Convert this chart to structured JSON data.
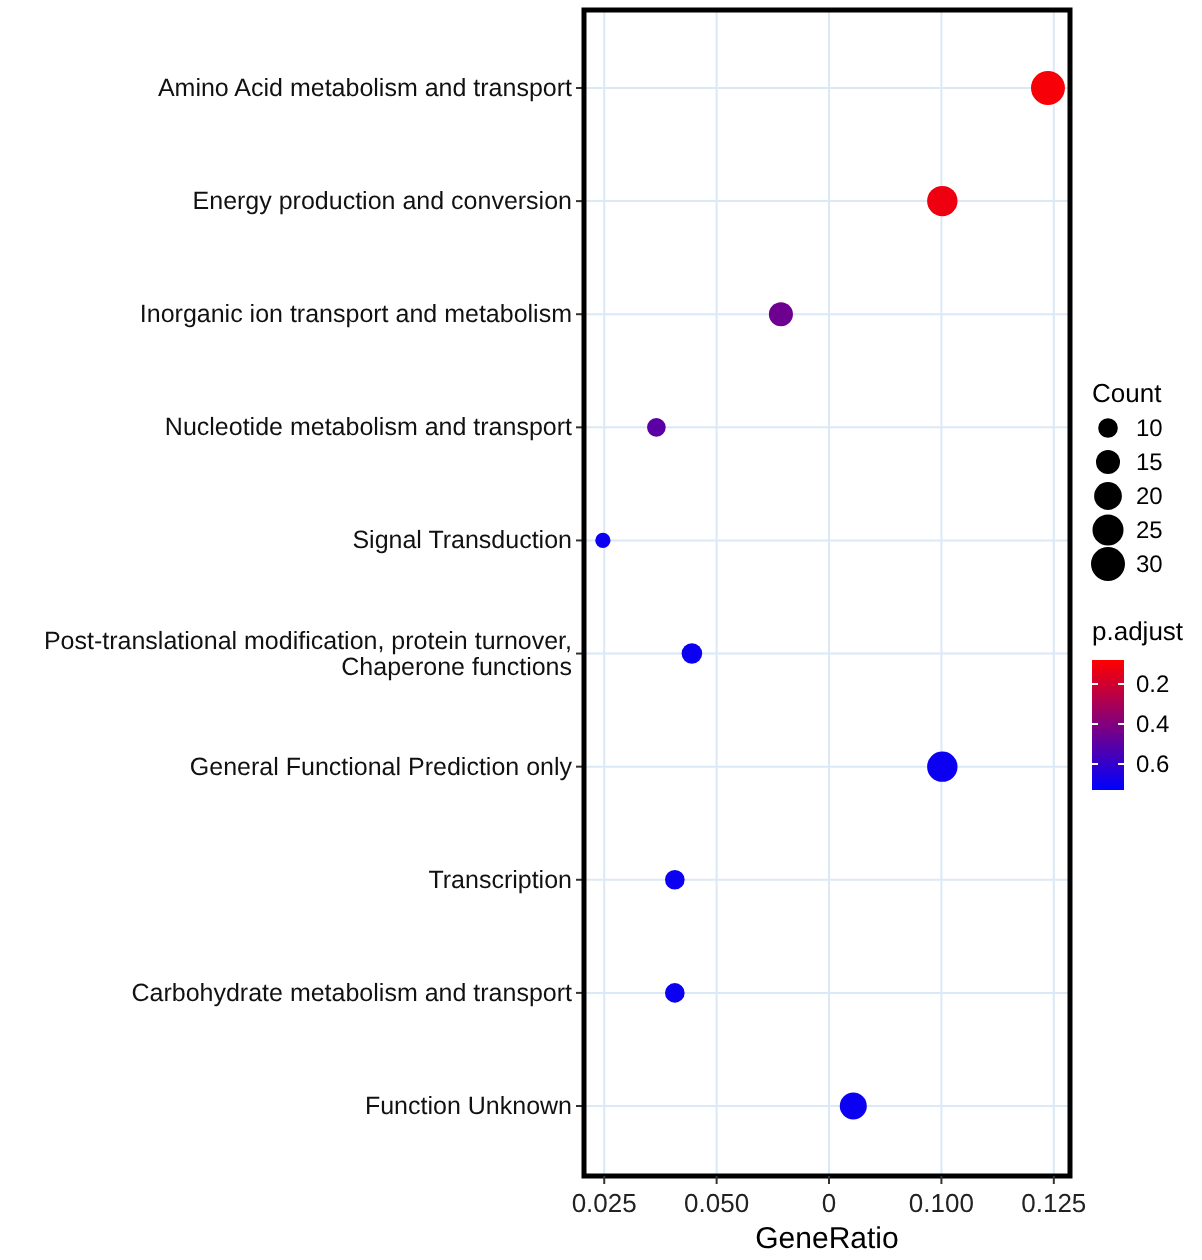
{
  "chart_data": {
    "type": "bubble",
    "xlabel": "GeneRatio",
    "categories": [
      "Amino Acid metabolism and transport",
      "Energy production and conversion",
      "Inorganic ion transport and metabolism",
      "Nucleotide metabolism and transport",
      "Signal Transduction",
      "Post-translational modification, protein turnover, Chaperone functions",
      "General Functional Prediction only",
      "Transcription",
      "Carbohydrate metabolism and transport",
      "Function Unknown"
    ],
    "orientation": "horizontal",
    "values": [
      0.1237,
      0.1002,
      0.0643,
      0.0366,
      0.0247,
      0.0445,
      0.1002,
      0.0407,
      0.0407,
      0.0804
    ],
    "sizes": [
      30,
      24,
      15,
      9,
      6,
      11,
      24,
      10,
      10,
      19
    ],
    "size_legend": [
      10,
      15,
      20,
      25,
      30
    ],
    "legend_title": "Count",
    "cvalues": [
      0.1,
      0.12,
      0.45,
      0.5,
      0.7,
      0.7,
      0.7,
      0.7,
      0.7,
      0.7
    ],
    "clabel": "p.adjust",
    "clim": [
      0.08,
      0.73
    ],
    "cticks": [
      0.2,
      0.4,
      0.6
    ],
    "xlim": [
      0.0205,
      0.1286
    ],
    "xticks": [
      {
        "value": 0.025,
        "label": "0.025"
      },
      {
        "value": 0.05,
        "label": "0.050"
      },
      {
        "value": 0.075,
        "label": "0"
      },
      {
        "value": 0.1,
        "label": "0.100"
      },
      {
        "value": 0.125,
        "label": "0.125"
      }
    ],
    "grid": true
  }
}
